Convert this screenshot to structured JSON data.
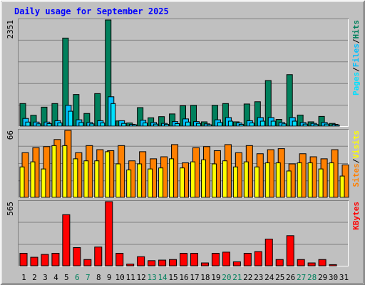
{
  "title": "Daily usage for September 2025",
  "colors": {
    "hits": "#00805C",
    "files": "#00C0FF",
    "pages": "#00E0FF",
    "visits": "#FFFF00",
    "sites": "#FF8000",
    "kbytes": "#FF0000",
    "title": "#0000FF",
    "panel": "#C0C0C0",
    "weekend": "#00805C"
  },
  "chart_data": [
    {
      "type": "bar",
      "title": "Daily usage for September 2025",
      "categories": [
        "1",
        "2",
        "3",
        "4",
        "5",
        "6",
        "7",
        "8",
        "9",
        "10",
        "11",
        "12",
        "13",
        "14",
        "15",
        "16",
        "17",
        "18",
        "19",
        "20",
        "21",
        "22",
        "23",
        "24",
        "25",
        "26",
        "27",
        "28",
        "29",
        "30",
        "31"
      ],
      "weekend_days": [
        "6",
        "7",
        "13",
        "14",
        "20",
        "21",
        "27",
        "28"
      ],
      "ymax_label": "2351",
      "ylim": [
        0,
        2351
      ],
      "legend": [
        "Pages",
        "Files",
        "Hits"
      ],
      "series": [
        {
          "name": "Hits",
          "values": [
            500,
            240,
            420,
            500,
            1950,
            700,
            280,
            720,
            2351,
            115,
            70,
            410,
            185,
            210,
            270,
            450,
            460,
            95,
            460,
            500,
            95,
            490,
            540,
            1010,
            150,
            1140,
            245,
            95,
            215,
            60,
            0
          ]
        },
        {
          "name": "Files",
          "values": [
            170,
            90,
            90,
            120,
            460,
            140,
            80,
            120,
            650,
            120,
            40,
            130,
            80,
            60,
            100,
            160,
            100,
            50,
            140,
            190,
            70,
            120,
            190,
            190,
            80,
            190,
            80,
            60,
            80,
            40,
            0
          ]
        },
        {
          "name": "Pages",
          "values": [
            90,
            50,
            55,
            70,
            330,
            80,
            50,
            70,
            500,
            60,
            30,
            70,
            45,
            40,
            55,
            90,
            60,
            30,
            80,
            110,
            40,
            70,
            110,
            110,
            50,
            110,
            45,
            35,
            45,
            25,
            0
          ]
        }
      ]
    },
    {
      "type": "bar",
      "categories": [
        "1",
        "2",
        "3",
        "4",
        "5",
        "6",
        "7",
        "8",
        "9",
        "10",
        "11",
        "12",
        "13",
        "14",
        "15",
        "16",
        "17",
        "18",
        "19",
        "20",
        "21",
        "22",
        "23",
        "24",
        "25",
        "26",
        "27",
        "28",
        "29",
        "30",
        "31"
      ],
      "ymax_label": "66",
      "ylim": [
        0,
        66
      ],
      "legend": [
        "Sites",
        "Visits"
      ],
      "series": [
        {
          "name": "Sites",
          "values": [
            44,
            49,
            50,
            57,
            66,
            44,
            51,
            47,
            46,
            51,
            36,
            45,
            38,
            40,
            52,
            34,
            49,
            50,
            46,
            52,
            44,
            51,
            43,
            47,
            48,
            33,
            43,
            40,
            38,
            47,
            32
          ]
        },
        {
          "name": "Visits",
          "values": [
            30,
            35,
            28,
            51,
            51,
            38,
            36,
            36,
            45,
            33,
            27,
            33,
            28,
            29,
            38,
            29,
            35,
            37,
            33,
            36,
            30,
            35,
            30,
            34,
            34,
            26,
            34,
            34,
            28,
            34,
            21
          ]
        }
      ]
    },
    {
      "type": "bar",
      "categories": [
        "1",
        "2",
        "3",
        "4",
        "5",
        "6",
        "7",
        "8",
        "9",
        "10",
        "11",
        "12",
        "13",
        "14",
        "15",
        "16",
        "17",
        "18",
        "19",
        "20",
        "21",
        "22",
        "23",
        "24",
        "25",
        "26",
        "27",
        "28",
        "29",
        "30",
        "31"
      ],
      "ymax_label": "565",
      "ylim": [
        0,
        565
      ],
      "legend": [
        "KBytes"
      ],
      "series": [
        {
          "name": "KBytes",
          "values": [
            110,
            75,
            100,
            110,
            450,
            160,
            55,
            165,
            565,
            110,
            15,
            80,
            45,
            50,
            55,
            110,
            110,
            25,
            110,
            120,
            35,
            110,
            125,
            235,
            55,
            265,
            55,
            25,
            55,
            10,
            0
          ]
        }
      ]
    }
  ]
}
